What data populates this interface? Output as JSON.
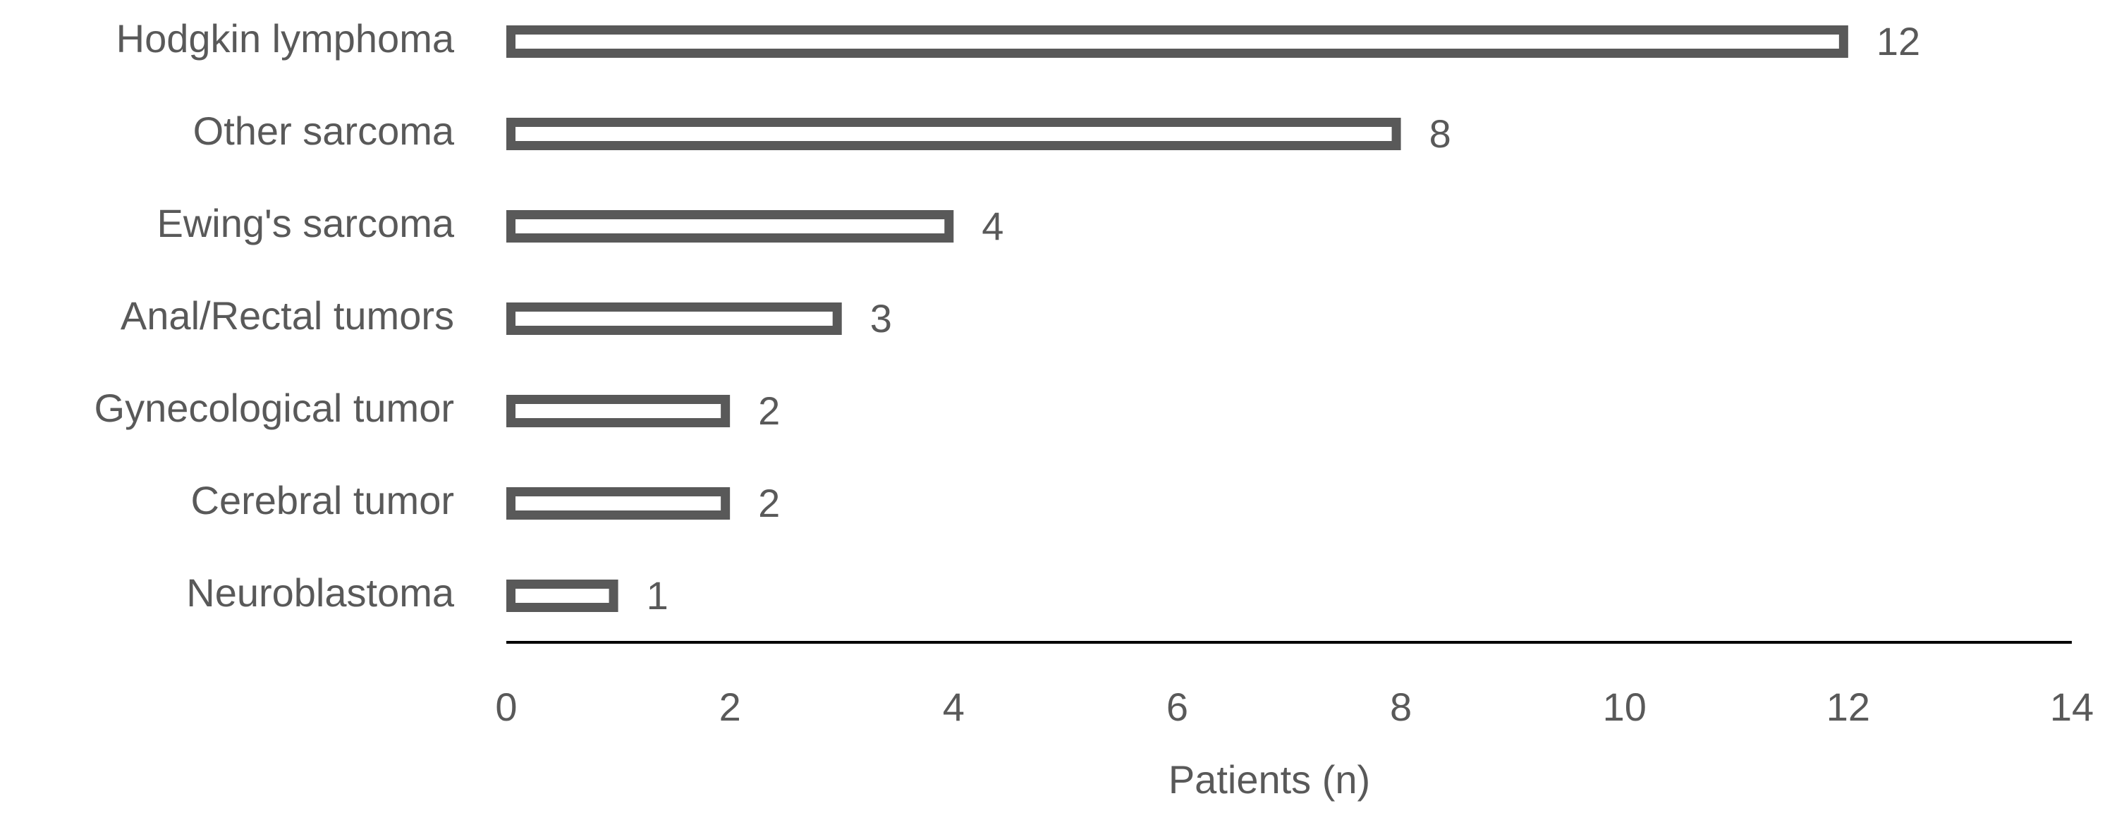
{
  "chart_data": {
    "type": "bar",
    "orientation": "horizontal",
    "categories": [
      "Hodgkin lymphoma",
      "Other sarcoma",
      "Ewing's sarcoma",
      "Anal/Rectal tumors",
      "Gynecological tumor",
      "Cerebral tumor",
      "Neuroblastoma"
    ],
    "values": [
      12,
      8,
      4,
      3,
      2,
      2,
      1
    ],
    "color": "#595959",
    "xlabel": "Patients (n)",
    "xlim": [
      0,
      14
    ],
    "xticks": [
      0,
      2,
      4,
      6,
      8,
      10,
      12,
      14
    ],
    "grid": false
  }
}
